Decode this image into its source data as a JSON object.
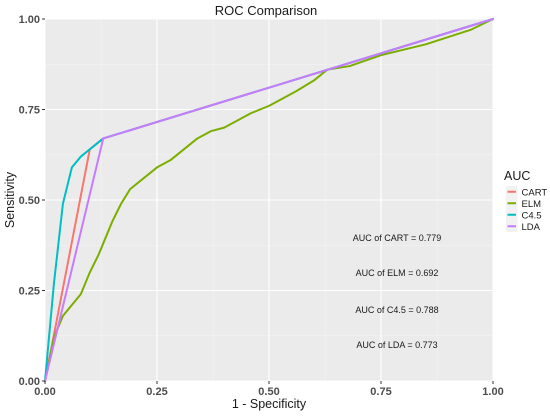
{
  "chart_data": {
    "type": "line",
    "title": "ROC Comparison",
    "xlabel": "1 - Specificity",
    "ylabel": "Sensitivity",
    "xlim": [
      0,
      1
    ],
    "ylim": [
      0,
      1
    ],
    "x_ticks": [
      "0.00",
      "0.25",
      "0.50",
      "0.75",
      "1.00"
    ],
    "y_ticks": [
      "0.00",
      "0.25",
      "0.50",
      "0.75",
      "1.00"
    ],
    "grid": true,
    "legend": {
      "title": "AUC",
      "placement": "right"
    },
    "series": [
      {
        "name": "CART",
        "color": "#F8766D",
        "x": [
          0,
          0.1,
          0.13,
          1
        ],
        "y": [
          0,
          0.64,
          0.67,
          1
        ]
      },
      {
        "name": "ELM",
        "color": "#7CAE00",
        "x": [
          0,
          0.02,
          0.04,
          0.06,
          0.08,
          0.09,
          0.1,
          0.12,
          0.13,
          0.15,
          0.17,
          0.19,
          0.21,
          0.23,
          0.25,
          0.28,
          0.31,
          0.34,
          0.37,
          0.4,
          0.43,
          0.46,
          0.5,
          0.53,
          0.56,
          0.6,
          0.63,
          0.68,
          0.75,
          0.85,
          0.95,
          1
        ],
        "y": [
          0,
          0.12,
          0.18,
          0.21,
          0.24,
          0.27,
          0.3,
          0.35,
          0.38,
          0.44,
          0.49,
          0.53,
          0.55,
          0.57,
          0.59,
          0.61,
          0.64,
          0.67,
          0.69,
          0.7,
          0.72,
          0.74,
          0.76,
          0.78,
          0.8,
          0.83,
          0.86,
          0.87,
          0.9,
          0.93,
          0.97,
          1
        ]
      },
      {
        "name": "C4.5",
        "color": "#00BFC4",
        "x": [
          0,
          0.02,
          0.04,
          0.06,
          0.08,
          0.1,
          0.13,
          1
        ],
        "y": [
          0,
          0.27,
          0.49,
          0.59,
          0.62,
          0.64,
          0.67,
          1
        ]
      },
      {
        "name": "LDA",
        "color": "#C77CFF",
        "x": [
          0,
          0.13,
          1
        ],
        "y": [
          0,
          0.67,
          1
        ]
      }
    ],
    "annotations": [
      "AUC of CART = 0.779",
      "AUC of ELM = 0.692",
      "AUC of C4.5 = 0.788",
      "AUC of LDA = 0.773"
    ]
  }
}
